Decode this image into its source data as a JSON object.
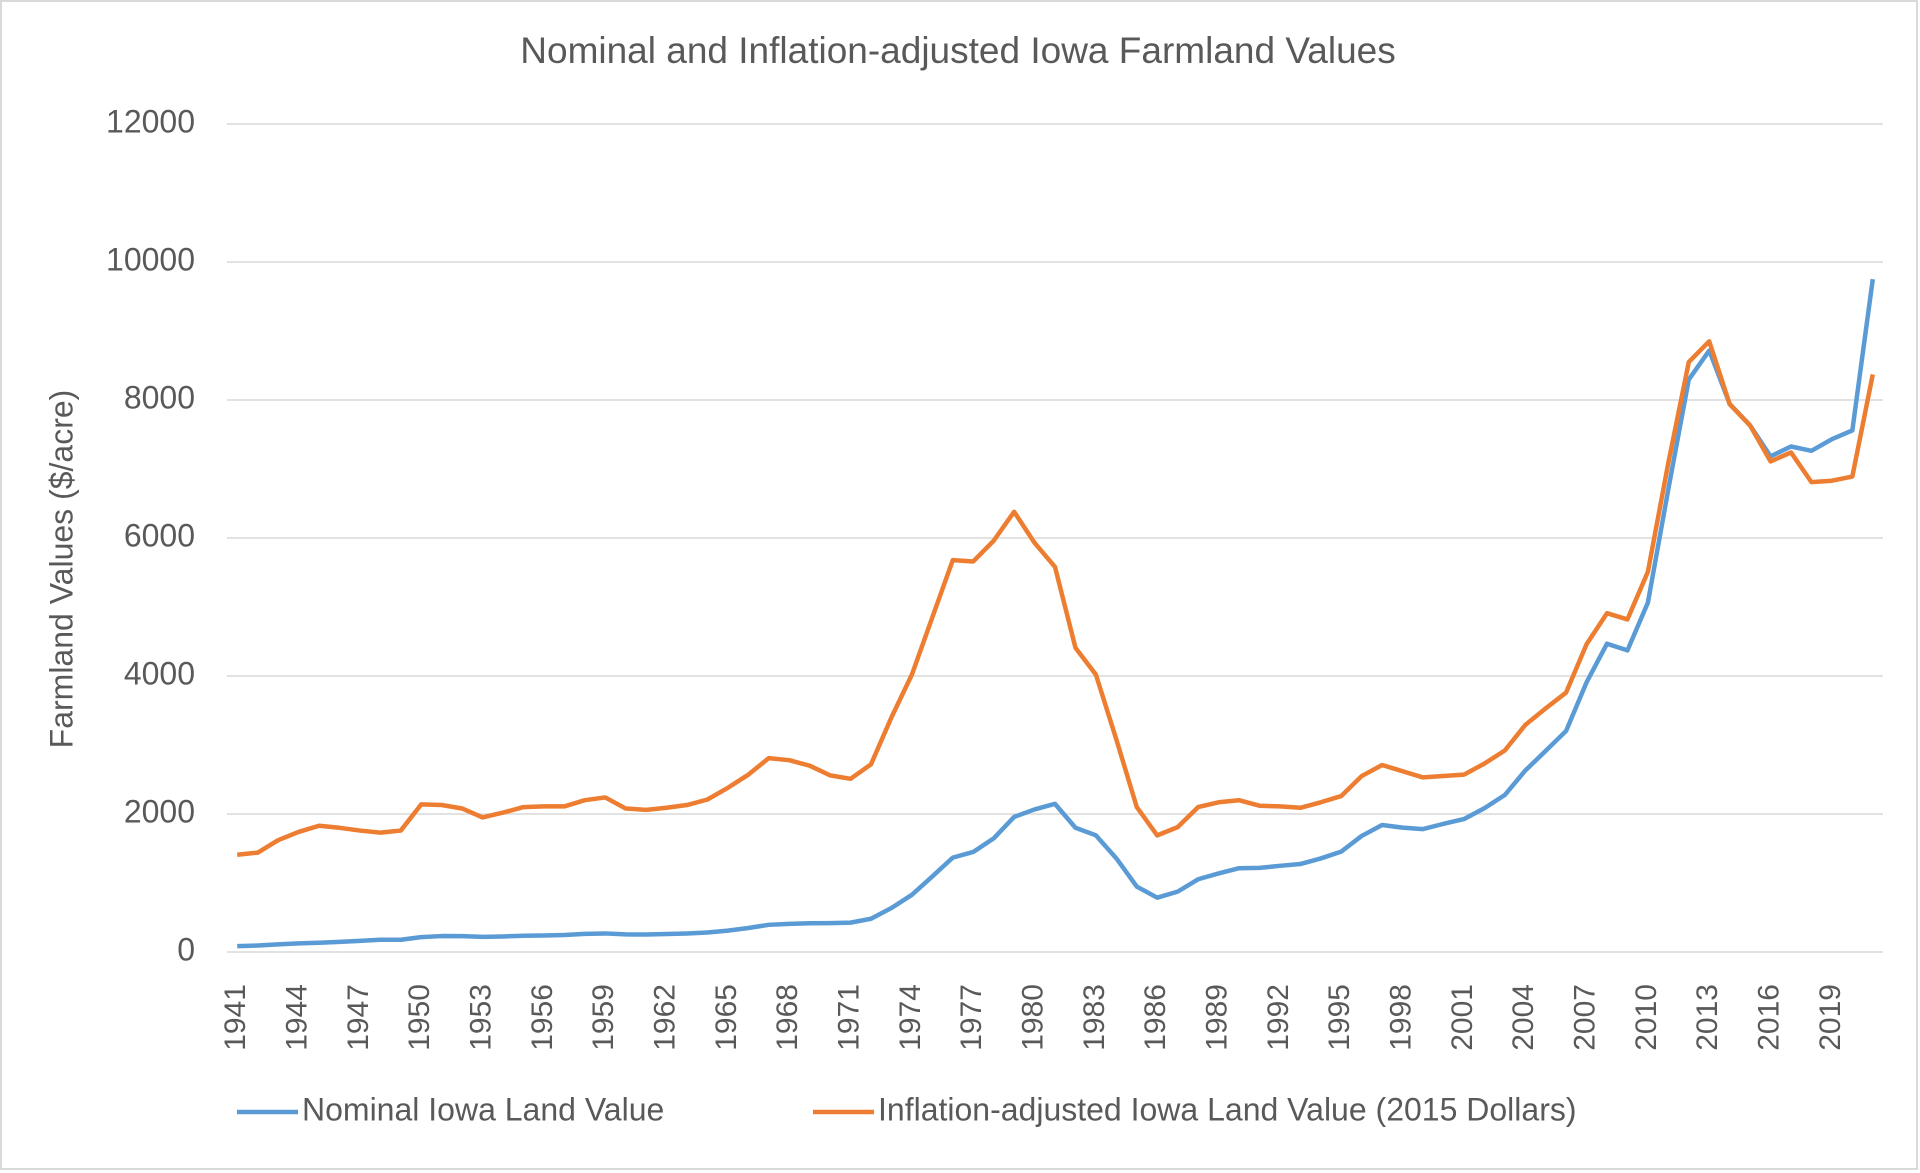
{
  "chart_data": {
    "type": "line",
    "title": "Nominal and Inflation-adjusted Iowa Farmland Values",
    "y_label": "Farmland Values ($/acre)",
    "x": [
      1941,
      1942,
      1943,
      1944,
      1945,
      1946,
      1947,
      1948,
      1949,
      1950,
      1951,
      1952,
      1953,
      1954,
      1955,
      1956,
      1957,
      1958,
      1959,
      1960,
      1961,
      1962,
      1963,
      1964,
      1965,
      1966,
      1967,
      1968,
      1969,
      1970,
      1971,
      1972,
      1973,
      1974,
      1975,
      1976,
      1977,
      1978,
      1979,
      1980,
      1981,
      1982,
      1983,
      1984,
      1985,
      1986,
      1987,
      1988,
      1989,
      1990,
      1991,
      1992,
      1993,
      1994,
      1995,
      1996,
      1997,
      1998,
      1999,
      2000,
      2001,
      2002,
      2003,
      2004,
      2005,
      2006,
      2007,
      2008,
      2009,
      2010,
      2011,
      2012,
      2013,
      2014,
      2015,
      2016,
      2017,
      2018,
      2019,
      2020,
      2021
    ],
    "series": [
      {
        "name": "Nominal Iowa Land Value",
        "color": "#5b9bd5",
        "values": [
          85,
          94,
          111,
          125,
          134,
          146,
          162,
          177,
          177,
          216,
          231,
          230,
          219,
          225,
          236,
          240,
          246,
          263,
          269,
          255,
          253,
          260,
          269,
          283,
          310,
          348,
          394,
          407,
          416,
          419,
          426,
          482,
          638,
          829,
          1095,
          1368,
          1450,
          1646,
          1958,
          2066,
          2147,
          1801,
          1691,
          1357,
          948,
          787,
          875,
          1054,
          1139,
          1214,
          1219,
          1249,
          1275,
          1356,
          1455,
          1682,
          1840,
          1802,
          1781,
          1857,
          1926,
          2083,
          2275,
          2629,
          2914,
          3204,
          3908,
          4468,
          4371,
          5064,
          6708,
          8296,
          8716,
          7943,
          7633,
          7183,
          7326,
          7264,
          7432,
          7559,
          9751
        ]
      },
      {
        "name": "Inflation-adjusted Iowa Land Value (2015 Dollars)",
        "color": "#ed7d31",
        "values": [
          1410,
          1440,
          1620,
          1740,
          1830,
          1800,
          1760,
          1730,
          1760,
          2140,
          2130,
          2080,
          1950,
          2020,
          2100,
          2110,
          2110,
          2200,
          2240,
          2080,
          2060,
          2090,
          2130,
          2210,
          2380,
          2570,
          2810,
          2780,
          2700,
          2560,
          2510,
          2720,
          3400,
          4020,
          4850,
          5680,
          5660,
          5960,
          6380,
          5930,
          5580,
          4410,
          4020,
          3080,
          2100,
          1690,
          1810,
          2100,
          2170,
          2200,
          2120,
          2110,
          2090,
          2170,
          2260,
          2550,
          2710,
          2620,
          2530,
          2550,
          2570,
          2730,
          2920,
          3290,
          3530,
          3760,
          4460,
          4910,
          4820,
          5510,
          7090,
          8550,
          8850,
          7940,
          7630,
          7110,
          7240,
          6810,
          6830,
          6890,
          8370
        ]
      }
    ],
    "xlim": [
      1940.5,
      2021.5
    ],
    "xticks": [
      1941,
      1944,
      1947,
      1950,
      1953,
      1956,
      1959,
      1962,
      1965,
      1968,
      1971,
      1974,
      1977,
      1980,
      1983,
      1986,
      1989,
      1992,
      1995,
      1998,
      2001,
      2004,
      2007,
      2010,
      2013,
      2016,
      2019
    ],
    "ylim": [
      0,
      12000
    ],
    "yticks": [
      0,
      2000,
      4000,
      6000,
      8000,
      10000,
      12000
    ],
    "grid": true,
    "legend": "bottom"
  }
}
